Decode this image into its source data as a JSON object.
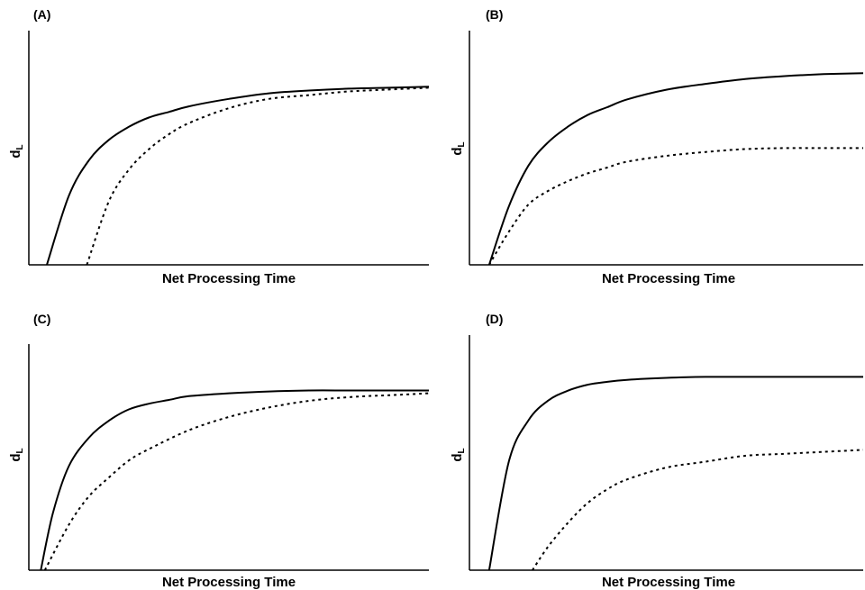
{
  "chart_data": [
    {
      "type": "line",
      "panel_label": "(A)",
      "xlabel": "Net Processing Time",
      "ylabel_main": "d",
      "ylabel_sub": "L",
      "xlim": [
        0,
        10
      ],
      "ylim": [
        0,
        1
      ],
      "grid": false,
      "series": [
        {
          "style": "solid",
          "x": [
            0.45,
            1.0,
            1.5,
            2.0,
            2.5,
            3.0,
            3.5,
            4.0,
            5.0,
            6.0,
            7.0,
            8.0,
            9.0,
            10.0
          ],
          "y": [
            0,
            0.37,
            0.56,
            0.67,
            0.74,
            0.79,
            0.82,
            0.85,
            0.89,
            0.92,
            0.935,
            0.945,
            0.95,
            0.955
          ]
        },
        {
          "style": "dotted",
          "x": [
            1.45,
            2.0,
            2.5,
            3.0,
            3.5,
            4.0,
            5.0,
            6.0,
            7.0,
            8.0,
            9.0,
            10.0
          ],
          "y": [
            0,
            0.34,
            0.51,
            0.62,
            0.7,
            0.76,
            0.84,
            0.89,
            0.91,
            0.93,
            0.94,
            0.95
          ]
        }
      ]
    },
    {
      "type": "line",
      "panel_label": "(B)",
      "xlabel": "Net Processing Time",
      "ylabel_main": "d",
      "ylabel_sub": "L",
      "xlim": [
        0,
        10
      ],
      "ylim": [
        0,
        1
      ],
      "grid": false,
      "series": [
        {
          "style": "solid",
          "x": [
            0.5,
            1.0,
            1.5,
            2.0,
            2.5,
            3.0,
            3.5,
            4.0,
            5.0,
            6.0,
            7.0,
            8.0,
            9.0,
            10.0
          ],
          "y": [
            0,
            0.3,
            0.51,
            0.63,
            0.71,
            0.77,
            0.81,
            0.85,
            0.9,
            0.93,
            0.955,
            0.97,
            0.98,
            0.985
          ]
        },
        {
          "style": "dotted",
          "x": [
            0.5,
            1.0,
            1.5,
            2.0,
            2.5,
            3.0,
            3.5,
            4.0,
            5.0,
            6.0,
            7.0,
            8.0,
            9.0,
            10.0
          ],
          "y": [
            0,
            0.17,
            0.31,
            0.38,
            0.43,
            0.47,
            0.5,
            0.53,
            0.56,
            0.58,
            0.595,
            0.6,
            0.6,
            0.6
          ]
        }
      ]
    },
    {
      "type": "line",
      "panel_label": "(C)",
      "xlabel": "Net Processing Time",
      "ylabel_main": "d",
      "ylabel_sub": "L",
      "xlim": [
        0,
        10
      ],
      "ylim": [
        0,
        1
      ],
      "grid": false,
      "series": [
        {
          "style": "solid",
          "x": [
            0.3,
            0.6,
            1.0,
            1.5,
            2.0,
            2.5,
            3.0,
            3.5,
            4.0,
            5.0,
            6.0,
            7.0,
            8.0,
            9.0,
            10.0
          ],
          "y": [
            0,
            0.3,
            0.55,
            0.7,
            0.79,
            0.85,
            0.88,
            0.9,
            0.92,
            0.935,
            0.945,
            0.95,
            0.95,
            0.95,
            0.95
          ]
        },
        {
          "style": "dotted",
          "x": [
            0.4,
            1.0,
            1.5,
            2.0,
            2.5,
            3.0,
            4.0,
            5.0,
            6.0,
            7.0,
            8.0,
            9.0,
            10.0
          ],
          "y": [
            0,
            0.24,
            0.39,
            0.49,
            0.58,
            0.64,
            0.74,
            0.81,
            0.86,
            0.895,
            0.915,
            0.925,
            0.935
          ]
        }
      ]
    },
    {
      "type": "line",
      "panel_label": "(D)",
      "xlabel": "Net Processing Time",
      "ylabel_main": "d",
      "ylabel_sub": "L",
      "xlim": [
        0,
        10
      ],
      "ylim": [
        0,
        1
      ],
      "grid": false,
      "series": [
        {
          "style": "solid",
          "x": [
            0.5,
            1.0,
            1.5,
            2.0,
            2.5,
            3.0,
            3.5,
            4.0,
            5.0,
            6.0,
            7.0,
            8.0,
            9.0,
            10.0
          ],
          "y": [
            0,
            0.55,
            0.76,
            0.86,
            0.91,
            0.94,
            0.955,
            0.965,
            0.975,
            0.98,
            0.98,
            0.98,
            0.98,
            0.98
          ]
        },
        {
          "style": "dotted",
          "x": [
            1.6,
            2.0,
            2.5,
            3.0,
            3.5,
            4.0,
            5.0,
            6.0,
            7.0,
            8.0,
            9.0,
            10.0
          ],
          "y": [
            0,
            0.12,
            0.24,
            0.34,
            0.41,
            0.46,
            0.52,
            0.55,
            0.58,
            0.59,
            0.6,
            0.61
          ]
        }
      ]
    }
  ]
}
